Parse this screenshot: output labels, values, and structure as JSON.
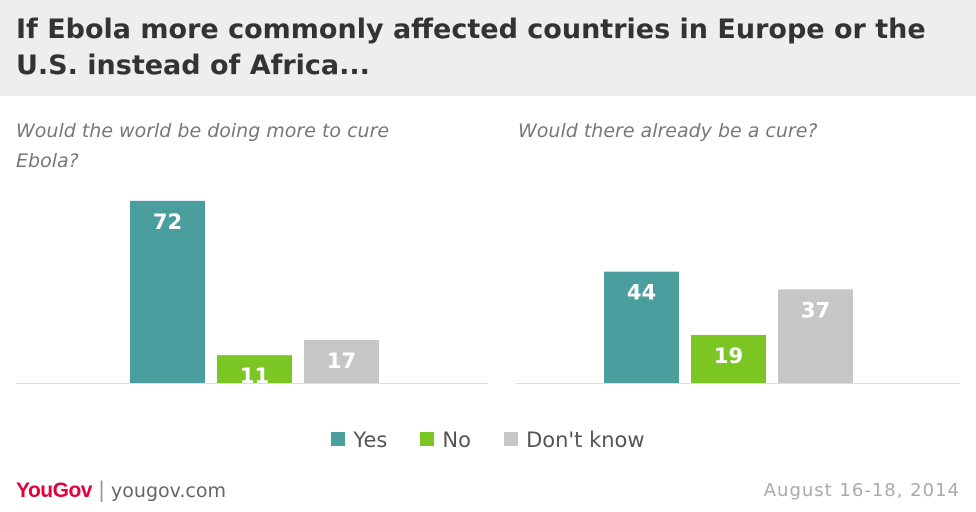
{
  "header": {
    "title": "If Ebola more commonly affected countries in Europe or the U.S. instead of Africa..."
  },
  "chart_data": [
    {
      "type": "bar",
      "title": "Would the world be doing more to cure Ebola?",
      "title_lines": [
        "Would the world be doing more to cure",
        "Ebola?"
      ],
      "categories": [
        "Yes",
        "No",
        "Don't know"
      ],
      "values": [
        72,
        11,
        17
      ],
      "colors": [
        "#4a9e9e",
        "#7cc623",
        "#c6c6c6"
      ],
      "ylim": [
        0,
        100
      ],
      "xlabel": "",
      "ylabel": ""
    },
    {
      "type": "bar",
      "title": "Would there already be a cure?",
      "title_lines": [
        "Would there already be a cure?"
      ],
      "categories": [
        "Yes",
        "No",
        "Don't know"
      ],
      "values": [
        44,
        19,
        37
      ],
      "colors": [
        "#4a9e9e",
        "#7cc623",
        "#c6c6c6"
      ],
      "ylim": [
        0,
        100
      ],
      "xlabel": "",
      "ylabel": ""
    }
  ],
  "legend": [
    {
      "label": "Yes",
      "color": "#4a9e9e"
    },
    {
      "label": "No",
      "color": "#7cc623"
    },
    {
      "label": "Don't know",
      "color": "#c6c6c6"
    }
  ],
  "footer": {
    "brand": "YouGov",
    "site": "yougov.com",
    "date": "August 16-18, 2014"
  }
}
